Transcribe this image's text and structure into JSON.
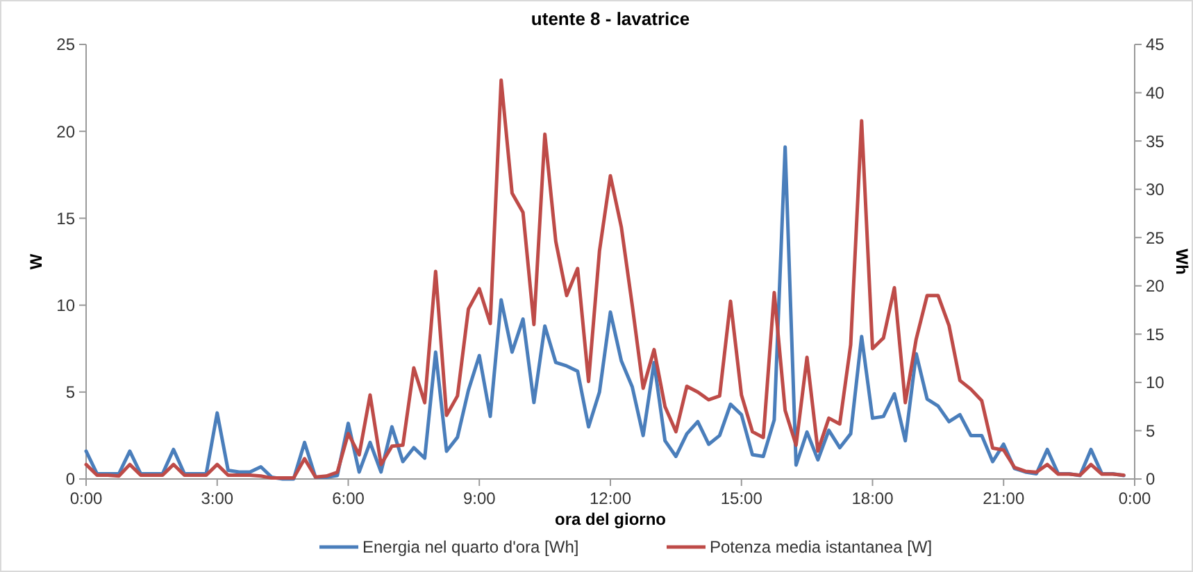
{
  "chart_data": {
    "type": "line",
    "title": "utente 8 - lavatrice",
    "xlabel": "ora del giorno",
    "ylabel": "W",
    "y2label": "Wh",
    "x": [
      0,
      0.25,
      0.5,
      0.75,
      1,
      1.25,
      1.5,
      1.75,
      2,
      2.25,
      2.5,
      2.75,
      3,
      3.25,
      3.5,
      3.75,
      4,
      4.25,
      4.5,
      4.75,
      5,
      5.25,
      5.5,
      5.75,
      6,
      6.25,
      6.5,
      6.75,
      7,
      7.25,
      7.5,
      7.75,
      8,
      8.25,
      8.5,
      8.75,
      9,
      9.25,
      9.5,
      9.75,
      10,
      10.25,
      10.5,
      10.75,
      11,
      11.25,
      11.5,
      11.75,
      12,
      12.25,
      12.5,
      12.75,
      13,
      13.25,
      13.5,
      13.75,
      14,
      14.25,
      14.5,
      14.75,
      15,
      15.25,
      15.5,
      15.75,
      16,
      16.25,
      16.5,
      16.75,
      17,
      17.25,
      17.5,
      17.75,
      18,
      18.25,
      18.5,
      18.75,
      19,
      19.25,
      19.5,
      19.75,
      20,
      20.25,
      20.5,
      20.75,
      21,
      21.25,
      21.5,
      21.75,
      22,
      22.25,
      22.5,
      22.75,
      23,
      23.25,
      23.5,
      23.75
    ],
    "series": [
      {
        "name": "Energia nel quarto d'ora [Wh]",
        "color": "#4a7ebb",
        "values": [
          1.6,
          0.3,
          0.3,
          0.3,
          1.6,
          0.3,
          0.3,
          0.3,
          1.7,
          0.3,
          0.3,
          0.3,
          3.8,
          0.5,
          0.4,
          0.4,
          0.7,
          0.1,
          0,
          0,
          2.1,
          0.1,
          0.1,
          0.2,
          3.2,
          0.4,
          2.1,
          0.4,
          3.0,
          1.0,
          1.8,
          1.2,
          7.3,
          1.6,
          2.4,
          5.1,
          7.1,
          3.6,
          10.3,
          7.3,
          9.2,
          4.4,
          8.8,
          6.7,
          6.5,
          6.2,
          3.0,
          5.0,
          9.6,
          6.8,
          5.3,
          2.5,
          6.7,
          2.2,
          1.3,
          2.6,
          3.3,
          2.0,
          2.5,
          4.3,
          3.7,
          1.4,
          1.3,
          3.4,
          19.1,
          0.8,
          2.7,
          1.1,
          2.8,
          1.8,
          2.6,
          8.2,
          3.5,
          3.6,
          4.9,
          2.2,
          7.2,
          4.6,
          4.2,
          3.3,
          3.7,
          2.5,
          2.5,
          1.0,
          2.0,
          0.6,
          0.4,
          0.3,
          1.7,
          0.3,
          0.3,
          0.2,
          1.7,
          0.3,
          0.3,
          0.2
        ]
      },
      {
        "name": "Potenza media istantanea [W]",
        "color": "#be4b48",
        "axis": "y2",
        "values": [
          1.5,
          0.4,
          0.4,
          0.3,
          1.5,
          0.4,
          0.4,
          0.4,
          1.5,
          0.4,
          0.4,
          0.4,
          1.5,
          0.4,
          0.4,
          0.4,
          0.3,
          0.1,
          0.1,
          0.1,
          2.1,
          0.2,
          0.3,
          0.7,
          4.7,
          2.5,
          8.7,
          1.5,
          3.4,
          3.5,
          11.5,
          7.9,
          21.5,
          6.6,
          8.6,
          17.6,
          19.7,
          16.1,
          41.3,
          29.6,
          27.6,
          16.0,
          35.7,
          24.6,
          19.0,
          21.8,
          10.1,
          23.6,
          31.4,
          26.1,
          18.0,
          9.4,
          13.4,
          7.5,
          4.9,
          9.6,
          9.0,
          8.2,
          8.6,
          18.4,
          8.7,
          4.9,
          4.3,
          19.3,
          7.1,
          3.5,
          12.6,
          2.9,
          6.3,
          5.7,
          13.9,
          37.1,
          13.5,
          14.6,
          19.8,
          7.9,
          14.5,
          19.0,
          19.0,
          15.9,
          10.2,
          9.3,
          8.1,
          3.2,
          3.0,
          1.2,
          0.8,
          0.7,
          1.5,
          0.5,
          0.5,
          0.4,
          1.5,
          0.5,
          0.5,
          0.4
        ]
      }
    ],
    "xlim": [
      0,
      24
    ],
    "xticks": [
      {
        "value": 0,
        "label": "0:00"
      },
      {
        "value": 3,
        "label": "3:00"
      },
      {
        "value": 6,
        "label": "6:00"
      },
      {
        "value": 9,
        "label": "9:00"
      },
      {
        "value": 12,
        "label": "12:00"
      },
      {
        "value": 15,
        "label": "15:00"
      },
      {
        "value": 18,
        "label": "18:00"
      },
      {
        "value": 21,
        "label": "21:00"
      },
      {
        "value": 24,
        "label": "0:00"
      }
    ],
    "ylim": [
      0,
      25
    ],
    "yticks": [
      0,
      5,
      10,
      15,
      20,
      25
    ],
    "y2lim": [
      0,
      45
    ],
    "y2ticks": [
      0,
      5,
      10,
      15,
      20,
      25,
      30,
      35,
      40,
      45
    ],
    "legend": "bottom",
    "grid": false,
    "marker": "none",
    "line_style": "solid"
  }
}
